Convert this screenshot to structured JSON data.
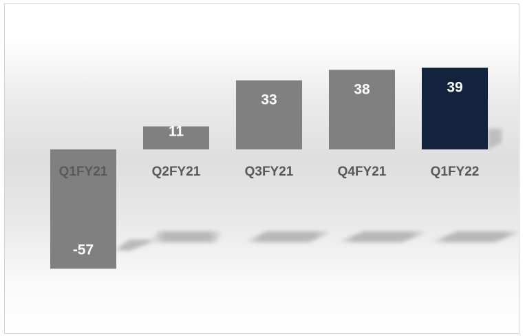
{
  "chart_data": {
    "type": "bar",
    "categories": [
      "Q1FY21",
      "Q2FY21",
      "Q3FY21",
      "Q4FY21",
      "Q1FY22"
    ],
    "values": [
      -57,
      11,
      33,
      38,
      39
    ],
    "data_labels": [
      "-57",
      "11",
      "33",
      "38",
      "39"
    ],
    "title": "",
    "xlabel": "",
    "ylabel": "",
    "ylim": [
      -80,
      50
    ],
    "grid": false,
    "legend": "none",
    "colors": {
      "default_bar": "#808080",
      "highlight_bar": "#13233d",
      "category_label": "#595959",
      "value_label": "#ffffff"
    },
    "highlight_index": 4
  }
}
